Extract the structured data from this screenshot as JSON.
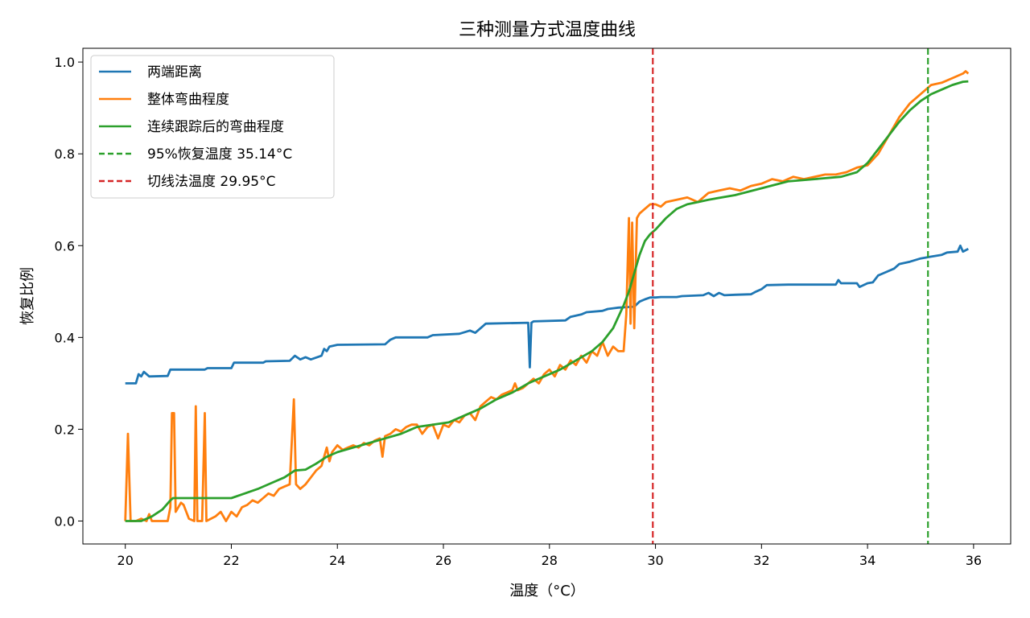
{
  "chart_data": {
    "type": "line",
    "title": "三种测量方式温度曲线",
    "xlabel": "温度（°C）",
    "ylabel": "恢复比例",
    "xlim": [
      19.2,
      36.7
    ],
    "ylim": [
      -0.05,
      1.03
    ],
    "xticks": [
      20,
      22,
      24,
      26,
      28,
      30,
      32,
      34,
      36
    ],
    "yticks": [
      0.0,
      0.2,
      0.4,
      0.6,
      0.8,
      1.0
    ],
    "xtick_labels": [
      "20",
      "22",
      "24",
      "26",
      "28",
      "30",
      "32",
      "34",
      "36"
    ],
    "ytick_labels": [
      "0.0",
      "0.2",
      "0.4",
      "0.6",
      "0.8",
      "1.0"
    ],
    "grid": false,
    "legend_position": "top-left",
    "series": [
      {
        "name": "两端距离",
        "color": "#1f77b4",
        "style": "solid",
        "points": [
          [
            20.0,
            0.3
          ],
          [
            20.2,
            0.3
          ],
          [
            20.25,
            0.32
          ],
          [
            20.3,
            0.315
          ],
          [
            20.35,
            0.325
          ],
          [
            20.45,
            0.315
          ],
          [
            20.8,
            0.316
          ],
          [
            20.85,
            0.33
          ],
          [
            21.5,
            0.33
          ],
          [
            21.55,
            0.333
          ],
          [
            22.0,
            0.333
          ],
          [
            22.05,
            0.345
          ],
          [
            22.6,
            0.345
          ],
          [
            22.65,
            0.348
          ],
          [
            23.1,
            0.349
          ],
          [
            23.2,
            0.36
          ],
          [
            23.3,
            0.352
          ],
          [
            23.4,
            0.357
          ],
          [
            23.5,
            0.352
          ],
          [
            23.7,
            0.36
          ],
          [
            23.75,
            0.375
          ],
          [
            23.8,
            0.37
          ],
          [
            23.85,
            0.38
          ],
          [
            24.0,
            0.384
          ],
          [
            24.9,
            0.385
          ],
          [
            25.0,
            0.395
          ],
          [
            25.1,
            0.4
          ],
          [
            25.7,
            0.4
          ],
          [
            25.8,
            0.405
          ],
          [
            26.3,
            0.408
          ],
          [
            26.5,
            0.415
          ],
          [
            26.6,
            0.41
          ],
          [
            26.7,
            0.42
          ],
          [
            26.8,
            0.43
          ],
          [
            27.6,
            0.432
          ],
          [
            27.63,
            0.335
          ],
          [
            27.66,
            0.432
          ],
          [
            27.7,
            0.435
          ],
          [
            28.3,
            0.437
          ],
          [
            28.4,
            0.445
          ],
          [
            28.6,
            0.45
          ],
          [
            28.7,
            0.455
          ],
          [
            29.0,
            0.458
          ],
          [
            29.1,
            0.462
          ],
          [
            29.3,
            0.465
          ],
          [
            29.6,
            0.467
          ],
          [
            29.7,
            0.478
          ],
          [
            29.8,
            0.483
          ],
          [
            29.9,
            0.487
          ],
          [
            30.0,
            0.487
          ],
          [
            30.1,
            0.488
          ],
          [
            30.4,
            0.488
          ],
          [
            30.5,
            0.49
          ],
          [
            30.9,
            0.492
          ],
          [
            31.0,
            0.497
          ],
          [
            31.1,
            0.49
          ],
          [
            31.2,
            0.497
          ],
          [
            31.3,
            0.492
          ],
          [
            31.5,
            0.493
          ],
          [
            31.8,
            0.494
          ],
          [
            31.9,
            0.5
          ],
          [
            32.0,
            0.505
          ],
          [
            32.1,
            0.514
          ],
          [
            32.5,
            0.515
          ],
          [
            33.4,
            0.515
          ],
          [
            33.45,
            0.525
          ],
          [
            33.5,
            0.518
          ],
          [
            33.8,
            0.518
          ],
          [
            33.85,
            0.51
          ],
          [
            34.0,
            0.518
          ],
          [
            34.1,
            0.52
          ],
          [
            34.2,
            0.535
          ],
          [
            34.3,
            0.54
          ],
          [
            34.5,
            0.55
          ],
          [
            34.6,
            0.56
          ],
          [
            34.8,
            0.565
          ],
          [
            35.0,
            0.572
          ],
          [
            35.2,
            0.576
          ],
          [
            35.4,
            0.58
          ],
          [
            35.5,
            0.585
          ],
          [
            35.7,
            0.587
          ],
          [
            35.75,
            0.6
          ],
          [
            35.8,
            0.587
          ],
          [
            35.9,
            0.593
          ]
        ]
      },
      {
        "name": "整体弯曲程度",
        "color": "#ff7f0e",
        "style": "solid",
        "points": [
          [
            20.0,
            0.0
          ],
          [
            20.05,
            0.19
          ],
          [
            20.1,
            0.0
          ],
          [
            20.2,
            0.0
          ],
          [
            20.3,
            0.005
          ],
          [
            20.4,
            0.0
          ],
          [
            20.45,
            0.015
          ],
          [
            20.5,
            0.0
          ],
          [
            20.8,
            0.0
          ],
          [
            20.85,
            0.03
          ],
          [
            20.88,
            0.235
          ],
          [
            20.92,
            0.235
          ],
          [
            20.95,
            0.02
          ],
          [
            21.05,
            0.04
          ],
          [
            21.1,
            0.035
          ],
          [
            21.2,
            0.005
          ],
          [
            21.3,
            0.0
          ],
          [
            21.33,
            0.25
          ],
          [
            21.36,
            0.0
          ],
          [
            21.45,
            0.0
          ],
          [
            21.5,
            0.235
          ],
          [
            21.53,
            0.0
          ],
          [
            21.7,
            0.01
          ],
          [
            21.8,
            0.02
          ],
          [
            21.9,
            0.0
          ],
          [
            22.0,
            0.02
          ],
          [
            22.1,
            0.01
          ],
          [
            22.2,
            0.03
          ],
          [
            22.3,
            0.035
          ],
          [
            22.4,
            0.045
          ],
          [
            22.5,
            0.04
          ],
          [
            22.6,
            0.05
          ],
          [
            22.7,
            0.06
          ],
          [
            22.8,
            0.055
          ],
          [
            22.9,
            0.07
          ],
          [
            23.0,
            0.075
          ],
          [
            23.1,
            0.08
          ],
          [
            23.18,
            0.265
          ],
          [
            23.22,
            0.08
          ],
          [
            23.3,
            0.07
          ],
          [
            23.4,
            0.08
          ],
          [
            23.5,
            0.095
          ],
          [
            23.6,
            0.11
          ],
          [
            23.7,
            0.12
          ],
          [
            23.8,
            0.16
          ],
          [
            23.85,
            0.13
          ],
          [
            23.9,
            0.15
          ],
          [
            24.0,
            0.165
          ],
          [
            24.1,
            0.155
          ],
          [
            24.2,
            0.16
          ],
          [
            24.3,
            0.165
          ],
          [
            24.4,
            0.16
          ],
          [
            24.5,
            0.17
          ],
          [
            24.6,
            0.165
          ],
          [
            24.7,
            0.175
          ],
          [
            24.8,
            0.18
          ],
          [
            24.85,
            0.14
          ],
          [
            24.9,
            0.185
          ],
          [
            25.0,
            0.19
          ],
          [
            25.1,
            0.2
          ],
          [
            25.2,
            0.195
          ],
          [
            25.3,
            0.205
          ],
          [
            25.4,
            0.21
          ],
          [
            25.5,
            0.21
          ],
          [
            25.6,
            0.19
          ],
          [
            25.7,
            0.205
          ],
          [
            25.8,
            0.21
          ],
          [
            25.9,
            0.18
          ],
          [
            26.0,
            0.21
          ],
          [
            26.1,
            0.205
          ],
          [
            26.2,
            0.22
          ],
          [
            26.3,
            0.215
          ],
          [
            26.4,
            0.23
          ],
          [
            26.5,
            0.235
          ],
          [
            26.6,
            0.22
          ],
          [
            26.7,
            0.25
          ],
          [
            26.8,
            0.26
          ],
          [
            26.9,
            0.27
          ],
          [
            27.0,
            0.265
          ],
          [
            27.1,
            0.275
          ],
          [
            27.2,
            0.28
          ],
          [
            27.3,
            0.285
          ],
          [
            27.35,
            0.3
          ],
          [
            27.4,
            0.285
          ],
          [
            27.5,
            0.29
          ],
          [
            27.6,
            0.3
          ],
          [
            27.7,
            0.31
          ],
          [
            27.8,
            0.3
          ],
          [
            27.9,
            0.32
          ],
          [
            28.0,
            0.33
          ],
          [
            28.1,
            0.315
          ],
          [
            28.2,
            0.34
          ],
          [
            28.3,
            0.33
          ],
          [
            28.4,
            0.35
          ],
          [
            28.5,
            0.34
          ],
          [
            28.6,
            0.36
          ],
          [
            28.7,
            0.345
          ],
          [
            28.8,
            0.37
          ],
          [
            28.9,
            0.36
          ],
          [
            29.0,
            0.39
          ],
          [
            29.1,
            0.36
          ],
          [
            29.2,
            0.38
          ],
          [
            29.3,
            0.37
          ],
          [
            29.4,
            0.37
          ],
          [
            29.45,
            0.45
          ],
          [
            29.5,
            0.66
          ],
          [
            29.53,
            0.43
          ],
          [
            29.56,
            0.65
          ],
          [
            29.6,
            0.42
          ],
          [
            29.65,
            0.66
          ],
          [
            29.7,
            0.67
          ],
          [
            29.8,
            0.68
          ],
          [
            29.9,
            0.69
          ],
          [
            30.0,
            0.69
          ],
          [
            30.1,
            0.685
          ],
          [
            30.2,
            0.695
          ],
          [
            30.4,
            0.7
          ],
          [
            30.6,
            0.705
          ],
          [
            30.8,
            0.695
          ],
          [
            31.0,
            0.715
          ],
          [
            31.2,
            0.72
          ],
          [
            31.4,
            0.725
          ],
          [
            31.6,
            0.72
          ],
          [
            31.8,
            0.73
          ],
          [
            32.0,
            0.735
          ],
          [
            32.2,
            0.745
          ],
          [
            32.4,
            0.74
          ],
          [
            32.6,
            0.75
          ],
          [
            32.8,
            0.745
          ],
          [
            33.0,
            0.75
          ],
          [
            33.2,
            0.755
          ],
          [
            33.4,
            0.755
          ],
          [
            33.6,
            0.76
          ],
          [
            33.8,
            0.77
          ],
          [
            34.0,
            0.775
          ],
          [
            34.2,
            0.8
          ],
          [
            34.4,
            0.84
          ],
          [
            34.6,
            0.88
          ],
          [
            34.8,
            0.91
          ],
          [
            35.0,
            0.93
          ],
          [
            35.2,
            0.95
          ],
          [
            35.4,
            0.955
          ],
          [
            35.6,
            0.965
          ],
          [
            35.8,
            0.975
          ],
          [
            35.85,
            0.98
          ],
          [
            35.9,
            0.975
          ]
        ]
      },
      {
        "name": "连续跟踪后的弯曲程度",
        "color": "#2ca02c",
        "style": "solid",
        "points": [
          [
            20.0,
            0.0
          ],
          [
            20.3,
            0.0
          ],
          [
            20.5,
            0.01
          ],
          [
            20.7,
            0.025
          ],
          [
            20.85,
            0.045
          ],
          [
            20.9,
            0.05
          ],
          [
            22.0,
            0.05
          ],
          [
            22.2,
            0.058
          ],
          [
            22.5,
            0.07
          ],
          [
            22.8,
            0.085
          ],
          [
            23.0,
            0.095
          ],
          [
            23.2,
            0.11
          ],
          [
            23.4,
            0.112
          ],
          [
            23.6,
            0.125
          ],
          [
            23.8,
            0.14
          ],
          [
            24.0,
            0.15
          ],
          [
            24.3,
            0.16
          ],
          [
            24.6,
            0.17
          ],
          [
            24.9,
            0.18
          ],
          [
            25.2,
            0.19
          ],
          [
            25.5,
            0.205
          ],
          [
            25.8,
            0.21
          ],
          [
            26.1,
            0.215
          ],
          [
            26.4,
            0.23
          ],
          [
            26.7,
            0.245
          ],
          [
            27.0,
            0.265
          ],
          [
            27.3,
            0.28
          ],
          [
            27.6,
            0.3
          ],
          [
            27.9,
            0.315
          ],
          [
            28.2,
            0.33
          ],
          [
            28.5,
            0.35
          ],
          [
            28.8,
            0.37
          ],
          [
            29.0,
            0.39
          ],
          [
            29.2,
            0.42
          ],
          [
            29.4,
            0.47
          ],
          [
            29.5,
            0.5
          ],
          [
            29.6,
            0.54
          ],
          [
            29.7,
            0.58
          ],
          [
            29.8,
            0.61
          ],
          [
            29.9,
            0.625
          ],
          [
            30.0,
            0.635
          ],
          [
            30.2,
            0.66
          ],
          [
            30.4,
            0.68
          ],
          [
            30.6,
            0.69
          ],
          [
            30.8,
            0.695
          ],
          [
            31.0,
            0.7
          ],
          [
            31.5,
            0.71
          ],
          [
            32.0,
            0.725
          ],
          [
            32.5,
            0.74
          ],
          [
            33.0,
            0.745
          ],
          [
            33.5,
            0.75
          ],
          [
            33.8,
            0.76
          ],
          [
            34.0,
            0.78
          ],
          [
            34.2,
            0.81
          ],
          [
            34.4,
            0.84
          ],
          [
            34.6,
            0.87
          ],
          [
            34.8,
            0.895
          ],
          [
            35.0,
            0.915
          ],
          [
            35.2,
            0.93
          ],
          [
            35.4,
            0.94
          ],
          [
            35.6,
            0.95
          ],
          [
            35.8,
            0.957
          ],
          [
            35.9,
            0.958
          ]
        ]
      },
      {
        "name": "95%恢复温度 35.14°C",
        "color": "#2ca02c",
        "style": "dashed",
        "vline": 35.14
      },
      {
        "name": "切线法温度 29.95°C",
        "color": "#d62728",
        "style": "dashed",
        "vline": 29.95
      }
    ]
  }
}
